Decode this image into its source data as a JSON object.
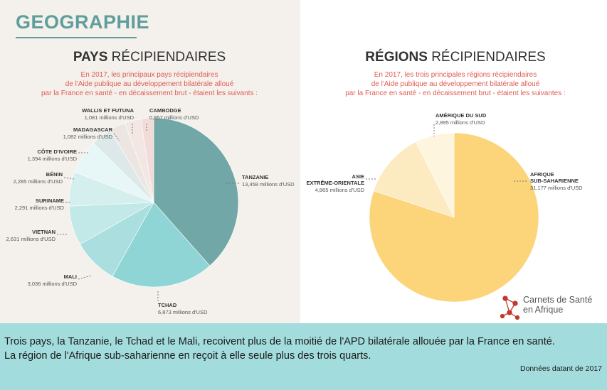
{
  "header": {
    "title": "GEOGRAPHIE"
  },
  "chart_data": [
    {
      "type": "pie",
      "title_bold": "PAYS",
      "title_rest": " RÉCIPIENDAIRES",
      "subtitle": [
        "En 2017, les principaux pays récipiendaires",
        "de l'Aide publique au développement bilatérale alloué",
        "par la France en santé - en décaissement brut - étaient les suivants :"
      ],
      "unit": "millions d'USD",
      "slices": [
        {
          "label": "TANZANIE",
          "value": 13.458,
          "value_text": "13,458 millions d'USD",
          "color": "#72a7a7"
        },
        {
          "label": "TCHAD",
          "value": 6.873,
          "value_text": "6,873 millions d'USD",
          "color": "#8fd5d5"
        },
        {
          "label": "MALI",
          "value": 3.036,
          "value_text": "3,036 millions d'USD",
          "color": "#abdfdf"
        },
        {
          "label": "VIETNAN",
          "value": 2.631,
          "value_text": "2,631 millions d'USD",
          "color": "#c3e8e8"
        },
        {
          "label": "SURINAME",
          "value": 2.291,
          "value_text": "2,291 millions d'USD",
          "color": "#d5efef"
        },
        {
          "label": "BÉNIN",
          "value": 2.285,
          "value_text": "2,285 millions d'USD",
          "color": "#e7f6f6"
        },
        {
          "label": "CÔTE D'IVOIRE",
          "value": 1.394,
          "value_text": "1,394 millions d'USD",
          "color": "#dde9e9"
        },
        {
          "label": "MADAGASCAR",
          "value": 1.082,
          "value_text": "1,082 millions d'USD",
          "color": "#ebe6e1"
        },
        {
          "label": "WALLIS ET FUTUNA",
          "value": 1.081,
          "value_text": "1,081 millions d'USD",
          "color": "#f3e7e4"
        },
        {
          "label": "CAMBODGE",
          "value": 0.857,
          "value_text": "0,857 millions d'USD",
          "color": "#f2dcda"
        }
      ]
    },
    {
      "type": "pie",
      "title_bold": "RÉGIONS",
      "title_rest": " RÉCIPIENDAIRES",
      "subtitle": [
        "En 2017, les trois principales régions récipiendaires",
        "de l'Aide publique au développement bilatérale alloué",
        "par la France en santé - en décaissement brut - étaient les suivantes :"
      ],
      "unit": "millions d'USD",
      "slices": [
        {
          "label": "AFRIQUE SUB-SAHARIENNE",
          "label_lines": [
            "AFRIQUE",
            "SUB-SAHARIENNE"
          ],
          "value": 31.177,
          "value_text": "31,177 millions d'USD",
          "color": "#fcd479"
        },
        {
          "label": "ASIE EXTRÊME-ORIENTALE",
          "label_lines": [
            "ASIE",
            "EXTRÊME-ORIENTALE"
          ],
          "value": 4.865,
          "value_text": "4,865 millions d'USD",
          "color": "#fcebc1"
        },
        {
          "label": "AMÉRIQUE DU SUD",
          "label_lines": [
            "AMÉRIQUE DU SUD"
          ],
          "value": 2.895,
          "value_text": "2,895 millions d'USD",
          "color": "#fdf5de"
        }
      ]
    }
  ],
  "logo": {
    "line1": "Carnets de Santé",
    "line2": "en Afrique",
    "color": "#c0392b"
  },
  "footer": {
    "line1": "Trois pays, la Tanzanie, le Tchad et le Mali, recoivent plus de la moitié de l'APD bilatérale allouée par la France en santé.",
    "line2": "La région de l'Afrique sub-saharienne en reçoit à elle seule plus des trois quarts.",
    "note": "Données datant de 2017"
  }
}
